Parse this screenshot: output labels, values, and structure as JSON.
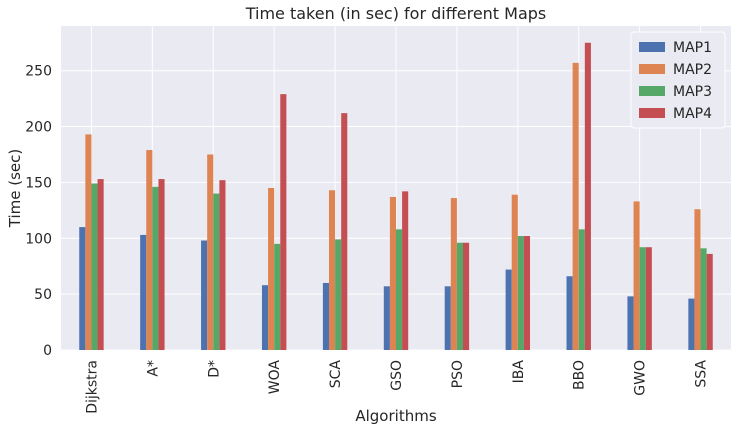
{
  "chart_data": {
    "type": "bar",
    "title": "Time taken (in sec) for different Maps",
    "xlabel": "Algorithms",
    "ylabel": "Time (sec)",
    "ylim": [
      0,
      290
    ],
    "yticks": [
      0,
      50,
      100,
      150,
      200,
      250
    ],
    "grid": true,
    "legend_position": "top-right",
    "categories": [
      "Dijkstra",
      "A*",
      "D*",
      "WOA",
      "SCA",
      "GSO",
      "PSO",
      "IBA",
      "BBO",
      "GWO",
      "SSA"
    ],
    "series": [
      {
        "name": "MAP1",
        "color": "#4c72b0",
        "values": [
          110,
          103,
          98,
          58,
          60,
          57,
          57,
          72,
          66,
          48,
          46
        ]
      },
      {
        "name": "MAP2",
        "color": "#dd8452",
        "values": [
          193,
          179,
          175,
          145,
          143,
          137,
          136,
          139,
          257,
          133,
          126
        ]
      },
      {
        "name": "MAP3",
        "color": "#55a868",
        "values": [
          149,
          146,
          140,
          95,
          99,
          108,
          96,
          102,
          108,
          92,
          91
        ]
      },
      {
        "name": "MAP4",
        "color": "#c44e52",
        "values": [
          153,
          153,
          152,
          229,
          212,
          142,
          96,
          102,
          275,
          92,
          86
        ]
      }
    ]
  }
}
